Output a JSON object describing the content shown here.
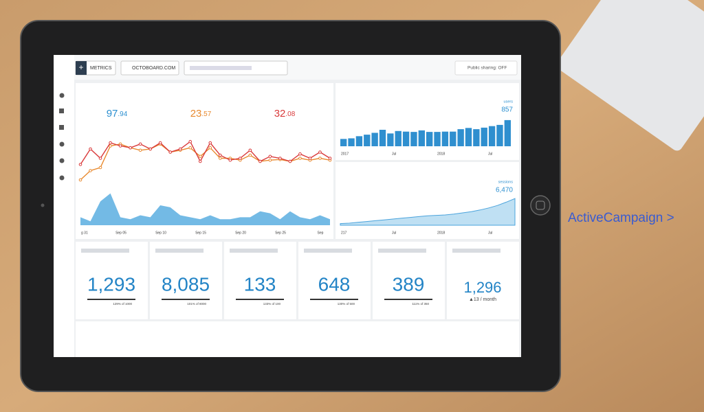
{
  "header": {
    "metrics_button": "METRICS",
    "board_menu": "OCTOBOARD.COM",
    "sharing": "Public sharing: OFF"
  },
  "overview": {
    "kpis": [
      {
        "whole": "97",
        "frac": ".94",
        "color": "#2b8fd0"
      },
      {
        "whole": "23",
        "frac": ".57",
        "color": "#e8892e"
      },
      {
        "whole": "32",
        "frac": ".08",
        "color": "#d9393a"
      }
    ],
    "xlabels": [
      "g 31",
      "Sep 05",
      "Sep 10",
      "Sep 15",
      "Sep 20",
      "Sep 25",
      "Sep"
    ],
    "ylim": [
      0,
      100
    ],
    "red": [
      45,
      70,
      55,
      80,
      75,
      72,
      78,
      70,
      80,
      65,
      70,
      82,
      50,
      80,
      60,
      52,
      55,
      68,
      50,
      58,
      55,
      50,
      62,
      55,
      65,
      55
    ],
    "orange": [
      20,
      35,
      40,
      75,
      78,
      72,
      68,
      70,
      78,
      65,
      68,
      72,
      58,
      72,
      55,
      55,
      52,
      60,
      50,
      52,
      53,
      50,
      55,
      52,
      55,
      52
    ],
    "blue": [
      20,
      10,
      60,
      80,
      20,
      15,
      25,
      20,
      50,
      45,
      25,
      20,
      15,
      25,
      15,
      15,
      20,
      20,
      35,
      30,
      15,
      35,
      20,
      15,
      25,
      15
    ]
  },
  "users": {
    "label": "users",
    "value": "857",
    "xlabels": [
      "2017",
      "Jul",
      "2018",
      "Jul"
    ],
    "ylim": [
      0,
      900
    ],
    "values": [
      240,
      260,
      330,
      380,
      440,
      540,
      420,
      500,
      480,
      470,
      520,
      470,
      470,
      480,
      480,
      560,
      600,
      560,
      610,
      660,
      700,
      857
    ]
  },
  "sessions": {
    "label": "sessions",
    "value": "6,470",
    "xlabels": [
      "217",
      "Jul",
      "2018",
      "Jul"
    ],
    "ylim": [
      0,
      7000
    ],
    "values": [
      400,
      500,
      700,
      900,
      1100,
      1300,
      1500,
      1700,
      1900,
      2100,
      2300,
      2400,
      2500,
      2700,
      3000,
      3300,
      3700,
      4200,
      4800,
      5600,
      6470
    ]
  },
  "tiles": [
    {
      "value": "1,293",
      "note": "129% of 1000"
    },
    {
      "value": "8,085",
      "note": "101% of 8000"
    },
    {
      "value": "133",
      "note": "133% of 100"
    },
    {
      "value": "648",
      "note": "130% of 500"
    },
    {
      "value": "389",
      "note": "111% of 350"
    },
    {
      "value": "1,296",
      "note": "▲13 / month"
    }
  ],
  "brand": "ActiveCampaign >"
}
